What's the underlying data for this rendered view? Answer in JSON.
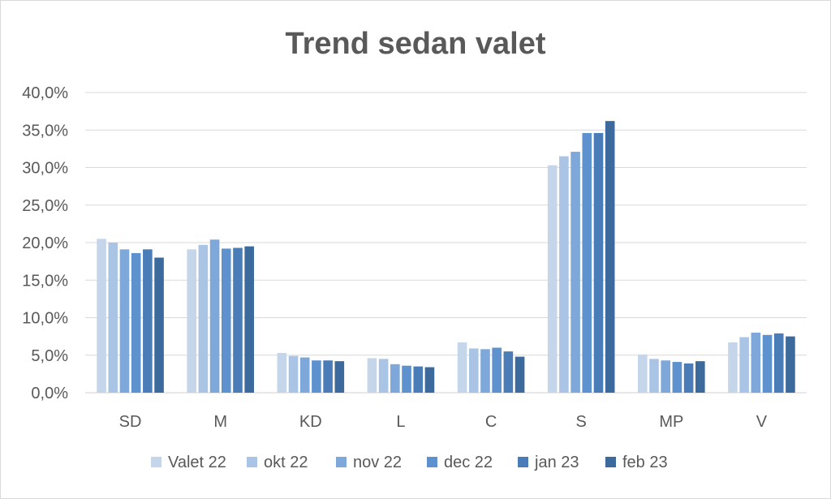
{
  "chart_data": {
    "type": "bar",
    "title": "Trend sedan valet",
    "xlabel": "",
    "ylabel": "",
    "categories": [
      "SD",
      "M",
      "KD",
      "L",
      "C",
      "S",
      "MP",
      "V"
    ],
    "ylim": [
      0,
      40
    ],
    "yticks": [
      0,
      5,
      10,
      15,
      20,
      25,
      30,
      35,
      40
    ],
    "ytick_labels": [
      "0,0%",
      "5,0%",
      "10,0%",
      "15,0%",
      "20,0%",
      "25,0%",
      "30,0%",
      "35,0%",
      "40,0%"
    ],
    "grid": true,
    "legend_position": "bottom",
    "series": [
      {
        "name": "Valet 22",
        "color": "#c5d5ea",
        "values": [
          20.5,
          19.1,
          5.3,
          4.6,
          6.7,
          30.3,
          5.1,
          6.7
        ]
      },
      {
        "name": "okt 22",
        "color": "#a9c4e4",
        "values": [
          20.0,
          19.7,
          4.9,
          4.5,
          5.9,
          31.5,
          4.5,
          7.4
        ]
      },
      {
        "name": "nov 22",
        "color": "#7ea8d9",
        "values": [
          19.1,
          20.4,
          4.7,
          3.8,
          5.8,
          32.1,
          4.3,
          8.0
        ]
      },
      {
        "name": "dec 22",
        "color": "#5d92cf",
        "values": [
          18.6,
          19.2,
          4.3,
          3.6,
          6.0,
          34.6,
          4.1,
          7.7
        ]
      },
      {
        "name": "jan 23",
        "color": "#4a7db8",
        "values": [
          19.1,
          19.3,
          4.3,
          3.5,
          5.5,
          34.6,
          3.9,
          7.9
        ]
      },
      {
        "name": "feb 23",
        "color": "#3d6a9c",
        "values": [
          18.0,
          19.5,
          4.2,
          3.4,
          4.8,
          36.2,
          4.2,
          7.5
        ]
      }
    ]
  }
}
